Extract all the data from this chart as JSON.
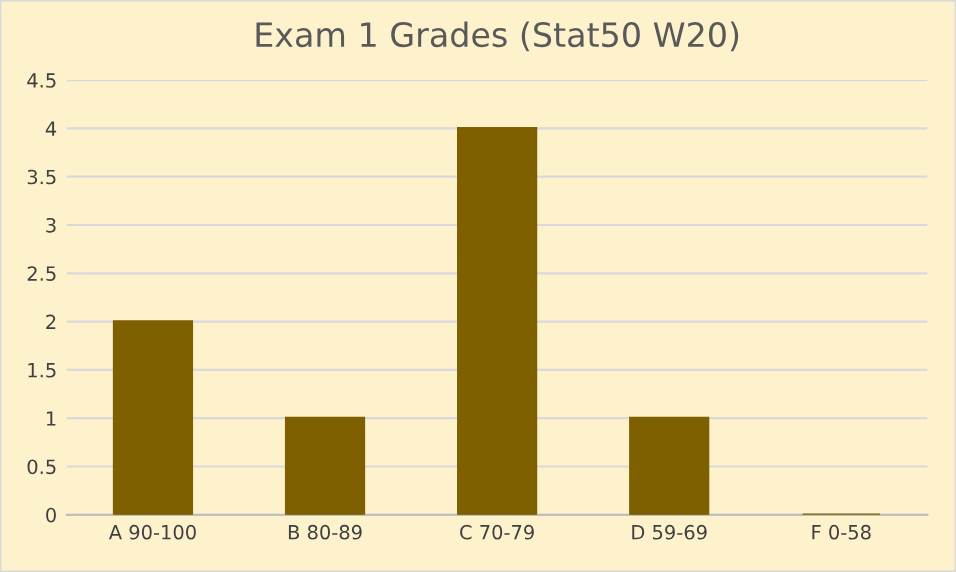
{
  "chart_data": {
    "type": "bar",
    "title": "Exam 1 Grades (Stat50 W20)",
    "categories": [
      "A 90-100",
      "B 80-89",
      "C 70-79",
      "D 59-69",
      "F 0-58"
    ],
    "values": [
      2,
      1,
      4,
      1,
      0
    ],
    "color": "#7f6000",
    "ylim": [
      0,
      4.5
    ],
    "yticks": [
      0,
      0.5,
      1,
      1.5,
      2,
      2.5,
      3,
      3.5,
      4,
      4.5
    ],
    "grid": "y"
  }
}
